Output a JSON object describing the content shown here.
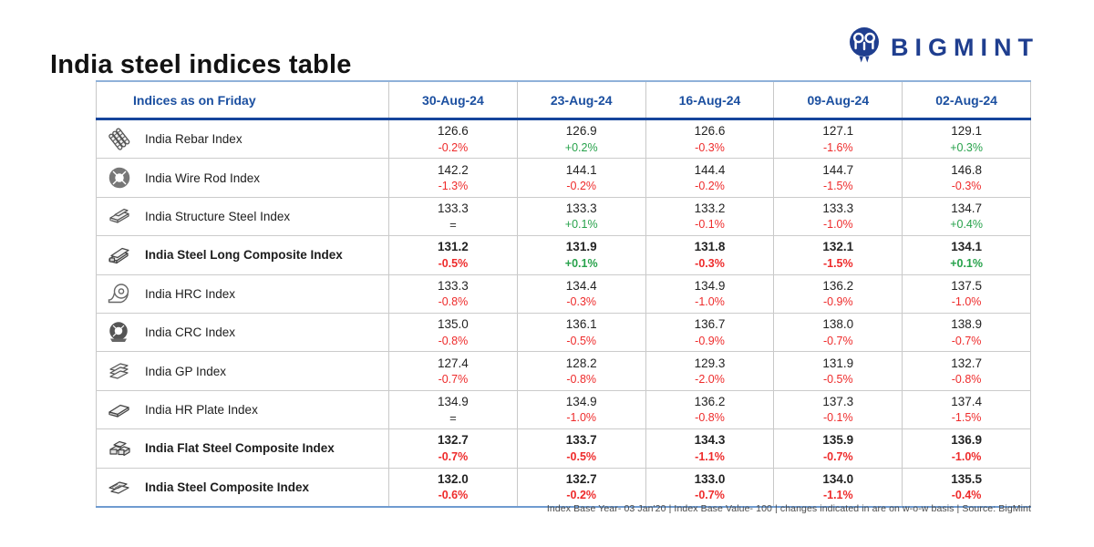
{
  "page": {
    "title": "India steel indices table",
    "footnote": "Index Base Year- 03 Jan'20 | Index Base Value- 100 | changes indicated in are on w-o-w basis | Source: BigMint"
  },
  "brand": {
    "name": "BIGMINT",
    "logo_icon": "bigmint-owl-icon",
    "brand_color": "#1f3e8f"
  },
  "colors": {
    "header_blue": "#1b4fa0",
    "positive_green": "#27a24b",
    "negative_red": "#ee2b2b",
    "neutral_change": "#333333",
    "header_rule_navy": "#16459c",
    "top_rule_light_blue": "#8fb1d9",
    "bottom_rule_blue": "#6f9bd0"
  },
  "chart_data": {
    "type": "table",
    "title": "India steel indices table",
    "columns": [
      "Indices as on Friday",
      "30-Aug-24",
      "23-Aug-24",
      "16-Aug-24",
      "09-Aug-24",
      "02-Aug-24"
    ],
    "rows": [
      {
        "icon": "rebar-icon",
        "label": "India Rebar Index",
        "bold": false,
        "values": [
          "126.6",
          "126.9",
          "126.6",
          "127.1",
          "129.1"
        ],
        "changes": [
          "-0.2%",
          "+0.2%",
          "-0.3%",
          "-1.6%",
          "+0.3%"
        ]
      },
      {
        "icon": "wire-rod-coil-icon",
        "label": "India Wire Rod Index",
        "bold": false,
        "values": [
          "142.2",
          "144.1",
          "144.4",
          "144.7",
          "146.8"
        ],
        "changes": [
          "-1.3%",
          "-0.2%",
          "-0.2%",
          "-1.5%",
          "-0.3%"
        ]
      },
      {
        "icon": "structure-steel-icon",
        "label": "India Structure Steel Index",
        "bold": false,
        "values": [
          "133.3",
          "133.3",
          "133.2",
          "133.3",
          "134.7"
        ],
        "changes": [
          "=",
          "+0.1%",
          "-0.1%",
          "-1.0%",
          "+0.4%"
        ]
      },
      {
        "icon": "long-steel-bundle-icon",
        "label": "India Steel Long Composite Index",
        "bold": true,
        "values": [
          "131.2",
          "131.9",
          "131.8",
          "132.1",
          "134.1"
        ],
        "changes": [
          "-0.5%",
          "+0.1%",
          "-0.3%",
          "-1.5%",
          "+0.1%"
        ]
      },
      {
        "icon": "hrc-coil-icon",
        "label": "India HRC Index",
        "bold": false,
        "values": [
          "133.3",
          "134.4",
          "134.9",
          "136.2",
          "137.5"
        ],
        "changes": [
          "-0.8%",
          "-0.3%",
          "-1.0%",
          "-0.9%",
          "-1.0%"
        ]
      },
      {
        "icon": "crc-coil-icon",
        "label": "India CRC Index",
        "bold": false,
        "values": [
          "135.0",
          "136.1",
          "136.7",
          "138.0",
          "138.9"
        ],
        "changes": [
          "-0.8%",
          "-0.5%",
          "-0.9%",
          "-0.7%",
          "-0.7%"
        ]
      },
      {
        "icon": "gp-sheets-icon",
        "label": "India GP Index",
        "bold": false,
        "values": [
          "127.4",
          "128.2",
          "129.3",
          "131.9",
          "132.7"
        ],
        "changes": [
          "-0.7%",
          "-0.8%",
          "-2.0%",
          "-0.5%",
          "-0.8%"
        ]
      },
      {
        "icon": "hr-plate-icon",
        "label": "India HR Plate Index",
        "bold": false,
        "values": [
          "134.9",
          "134.9",
          "136.2",
          "137.3",
          "137.4"
        ],
        "changes": [
          "=",
          "-1.0%",
          "-0.8%",
          "-0.1%",
          "-1.5%"
        ]
      },
      {
        "icon": "flat-steel-stack-icon",
        "label": "India Flat Steel Composite Index",
        "bold": true,
        "values": [
          "132.7",
          "133.7",
          "134.3",
          "135.9",
          "136.9"
        ],
        "changes": [
          "-0.7%",
          "-0.5%",
          "-1.1%",
          "-0.7%",
          "-1.0%"
        ]
      },
      {
        "icon": "composite-sheets-icon",
        "label": "India Steel Composite Index",
        "bold": true,
        "values": [
          "132.0",
          "132.7",
          "133.0",
          "134.0",
          "135.5"
        ],
        "changes": [
          "-0.6%",
          "-0.2%",
          "-0.7%",
          "-1.1%",
          "-0.4%"
        ]
      }
    ]
  }
}
